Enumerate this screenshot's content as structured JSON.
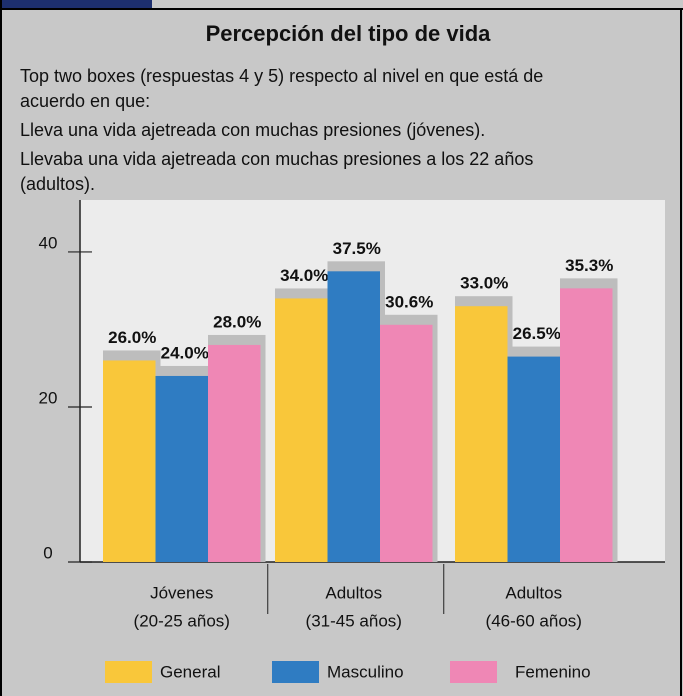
{
  "chart_data": {
    "type": "bar",
    "title": "Percepción del tipo de vida",
    "subtitle": [
      "Top two boxes (respuestas 4 y 5) respecto al nivel en que está de",
      "acuerdo en que:",
      "Lleva una vida ajetreada con muchas presiones (jóvenes).",
      "Llevaba una vida ajetreada con muchas presiones a los 22 años",
      "(adultos)."
    ],
    "categories": [
      [
        "Jóvenes",
        "(20-25 años)"
      ],
      [
        "Adultos",
        "(31-45 años)"
      ],
      [
        "Adultos",
        "(46-60 años)"
      ]
    ],
    "series": [
      {
        "name": "General",
        "color": "#f9c73a",
        "values": [
          26.0,
          34.0,
          33.0
        ],
        "value_labels": [
          "26.0%",
          "34.0%",
          "33.0%"
        ]
      },
      {
        "name": "Masculino",
        "color": "#2f7cc2",
        "values": [
          24.0,
          37.5,
          26.5
        ],
        "value_labels": [
          "24.0%",
          "37.5%",
          "26.5%"
        ]
      },
      {
        "name": "Femenino",
        "color": "#ef87b5",
        "values": [
          28.0,
          30.6,
          35.3
        ],
        "value_labels": [
          "28.0%",
          "30.6%",
          "35.3%"
        ]
      }
    ],
    "ylim": [
      0,
      46.7
    ],
    "yticks": [
      0,
      20,
      40
    ]
  }
}
